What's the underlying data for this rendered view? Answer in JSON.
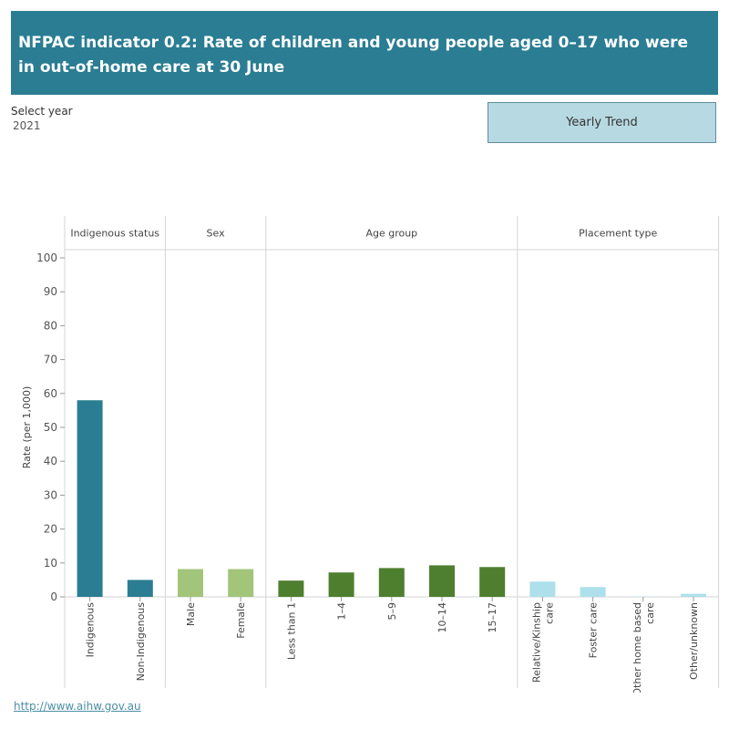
{
  "header": {
    "title": "NFPAC indicator 0.2: Rate of children and young people aged 0–17 who were in out-of-home care at 30 June"
  },
  "filter": {
    "label": "Select year",
    "value": "2021"
  },
  "trend_button": {
    "label": "Yearly Trend"
  },
  "footer": {
    "link": "http://www.aihw.gov.au"
  },
  "colors": {
    "indigenous_status": "#2a7d93",
    "sex": "#a2c57a",
    "age_group": "#4e7f2f",
    "placement_type": "#ade0ea",
    "banner": "#2a7d93",
    "button": "#b7d9e2"
  },
  "chart_data": {
    "type": "bar",
    "title": "",
    "xlabel": "",
    "ylabel": "Rate (per 1,000)",
    "ylim": [
      0,
      100
    ],
    "yticks": [
      0,
      10,
      20,
      30,
      40,
      50,
      60,
      70,
      80,
      90,
      100
    ],
    "grid": false,
    "panels": [
      {
        "name": "Indigenous status",
        "color": "#2a7d93",
        "categories": [
          "Indigenous",
          "Non-Indigenous"
        ],
        "values": [
          58,
          5
        ]
      },
      {
        "name": "Sex",
        "color": "#a2c57a",
        "categories": [
          "Male",
          "Female"
        ],
        "values": [
          8.2,
          8.2
        ]
      },
      {
        "name": "Age group",
        "color": "#4e7f2f",
        "categories": [
          "Less than 1",
          "1–4",
          "5–9",
          "10–14",
          "15–17"
        ],
        "values": [
          4.8,
          7.2,
          8.5,
          9.3,
          8.8
        ]
      },
      {
        "name": "Placement type",
        "color": "#ade0ea",
        "categories": [
          "Relative/Kinship care",
          "Foster care",
          "Other home based care",
          "Other/unknown"
        ],
        "values": [
          4.5,
          2.9,
          0.1,
          0.9
        ]
      }
    ]
  }
}
